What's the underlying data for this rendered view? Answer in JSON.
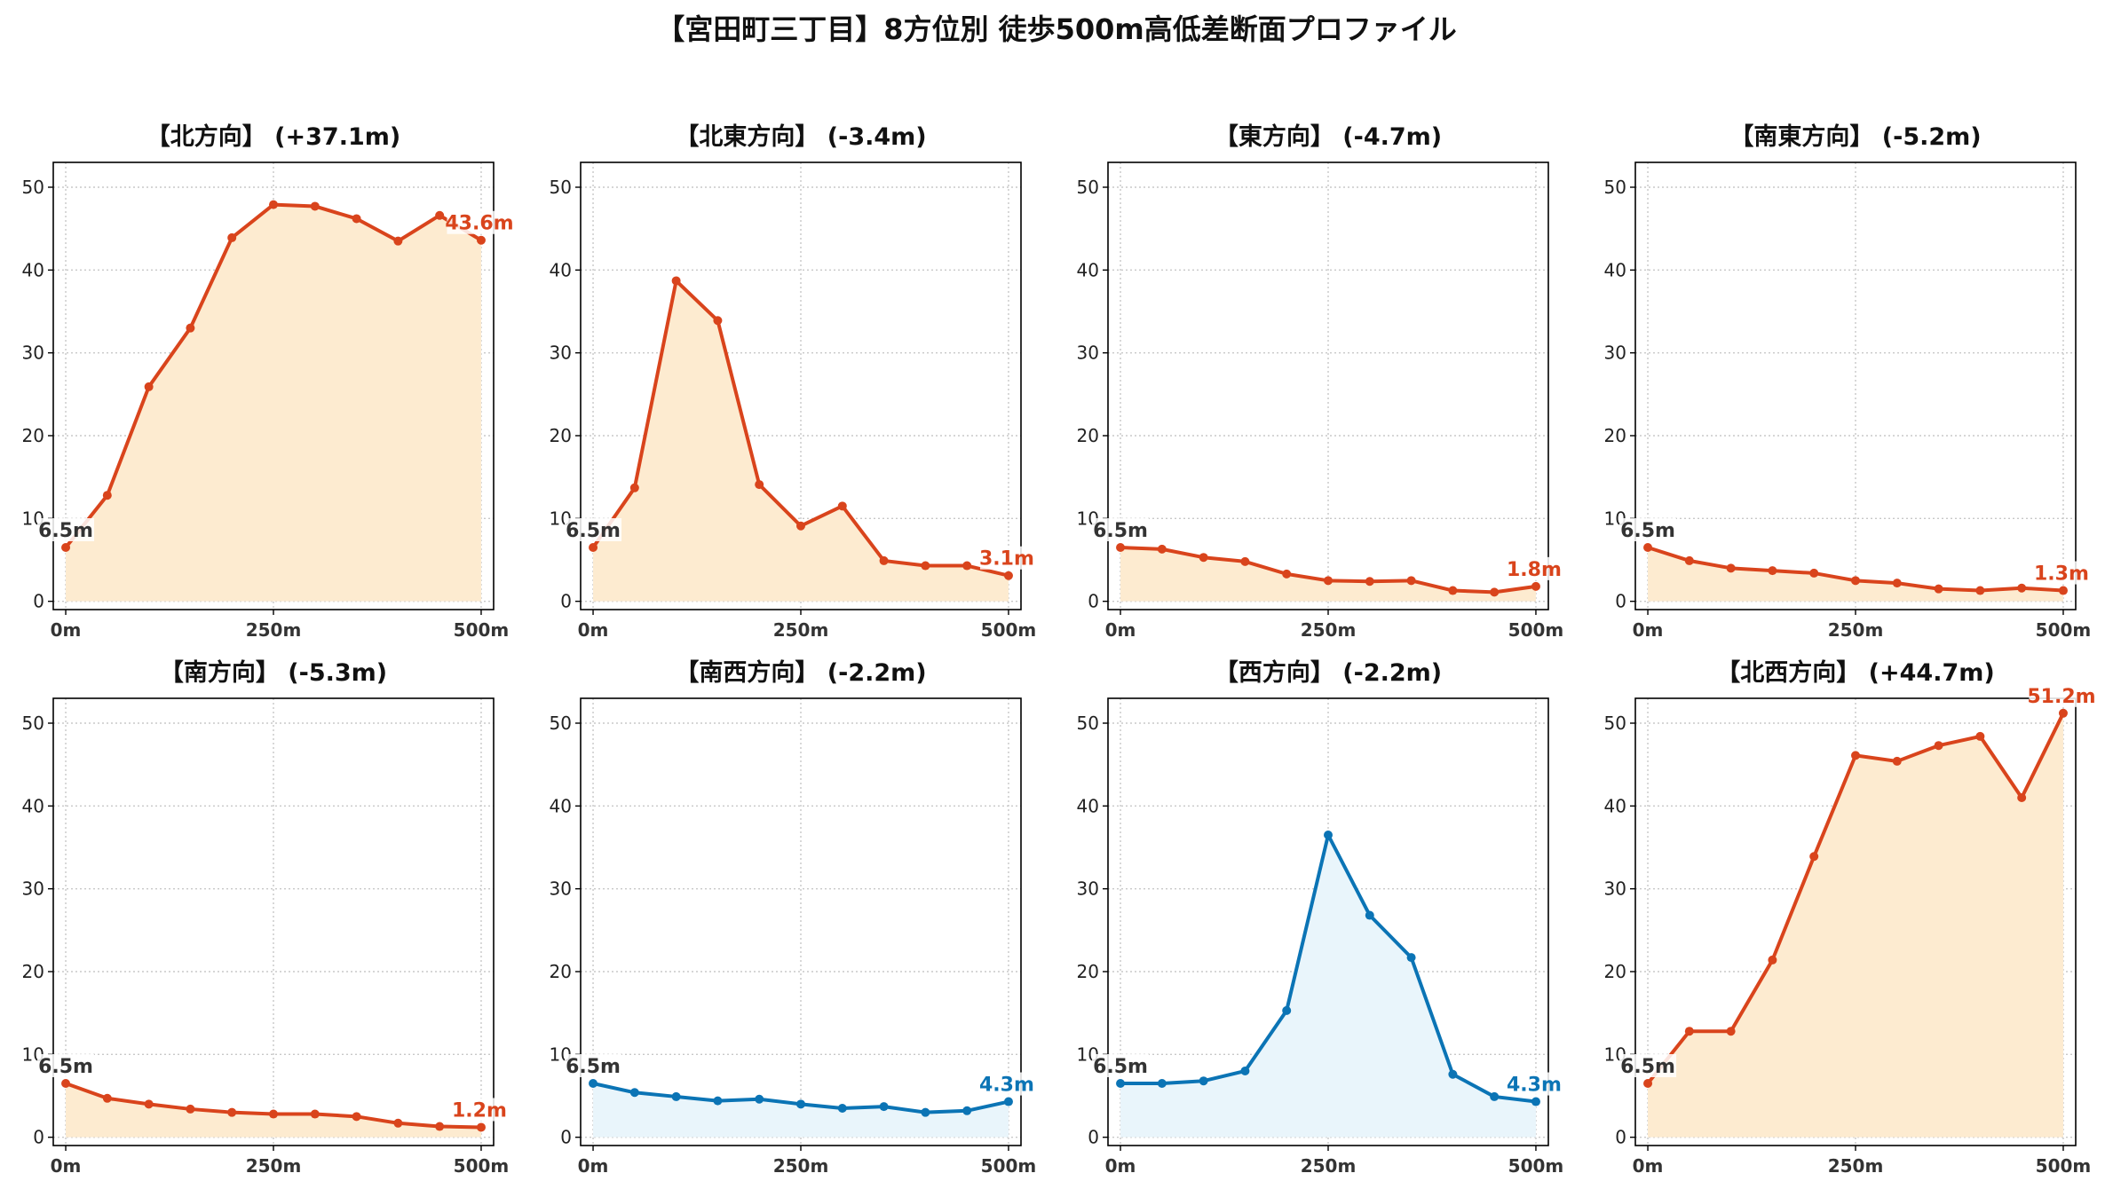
{
  "title": "【宮田町三丁目】8方位別 徒歩500m高低差断面プロファイル",
  "colors": {
    "up_line": "#d9441c",
    "up_fill": "#fdebd0",
    "down_line": "#0b74b5",
    "down_fill": "#e9f5fb",
    "grid": "#c8c8c8",
    "start_label": "#333333"
  },
  "chart_data": [
    {
      "type": "area",
      "title": "【北方向】 (+37.1m)",
      "x": [
        0,
        50,
        100,
        150,
        200,
        250,
        300,
        350,
        400,
        450,
        500
      ],
      "y": [
        6.5,
        12.8,
        25.9,
        33.0,
        43.9,
        47.9,
        47.7,
        46.2,
        43.5,
        46.6,
        43.6
      ],
      "xticks": [
        "0m",
        "250m",
        "500m"
      ],
      "yticks": [
        0,
        10,
        20,
        30,
        40,
        50
      ],
      "xlim": [
        -15,
        515
      ],
      "ylim": [
        -1,
        53
      ],
      "start_label": "6.5m",
      "end_label": "43.6m",
      "color_key": "up",
      "grid": true
    },
    {
      "type": "area",
      "title": "【北東方向】 (-3.4m)",
      "x": [
        0,
        50,
        100,
        150,
        200,
        250,
        300,
        350,
        400,
        450,
        500
      ],
      "y": [
        6.5,
        13.7,
        38.7,
        33.9,
        14.1,
        9.1,
        11.5,
        4.9,
        4.3,
        4.3,
        3.1
      ],
      "xticks": [
        "0m",
        "250m",
        "500m"
      ],
      "yticks": [
        0,
        10,
        20,
        30,
        40,
        50
      ],
      "xlim": [
        -15,
        515
      ],
      "ylim": [
        -1,
        53
      ],
      "start_label": "6.5m",
      "end_label": "3.1m",
      "color_key": "up",
      "grid": true
    },
    {
      "type": "area",
      "title": "【東方向】 (-4.7m)",
      "x": [
        0,
        50,
        100,
        150,
        200,
        250,
        300,
        350,
        400,
        450,
        500
      ],
      "y": [
        6.5,
        6.3,
        5.3,
        4.8,
        3.3,
        2.5,
        2.4,
        2.5,
        1.3,
        1.1,
        1.8
      ],
      "xticks": [
        "0m",
        "250m",
        "500m"
      ],
      "yticks": [
        0,
        10,
        20,
        30,
        40,
        50
      ],
      "xlim": [
        -15,
        515
      ],
      "ylim": [
        -1,
        53
      ],
      "start_label": "6.5m",
      "end_label": "1.8m",
      "color_key": "up",
      "grid": true
    },
    {
      "type": "area",
      "title": "【南東方向】 (-5.2m)",
      "x": [
        0,
        50,
        100,
        150,
        200,
        250,
        300,
        350,
        400,
        450,
        500
      ],
      "y": [
        6.5,
        4.9,
        4.0,
        3.7,
        3.4,
        2.5,
        2.2,
        1.5,
        1.3,
        1.6,
        1.3
      ],
      "xticks": [
        "0m",
        "250m",
        "500m"
      ],
      "yticks": [
        0,
        10,
        20,
        30,
        40,
        50
      ],
      "xlim": [
        -15,
        515
      ],
      "ylim": [
        -1,
        53
      ],
      "start_label": "6.5m",
      "end_label": "1.3m",
      "color_key": "up",
      "grid": true
    },
    {
      "type": "area",
      "title": "【南方向】 (-5.3m)",
      "x": [
        0,
        50,
        100,
        150,
        200,
        250,
        300,
        350,
        400,
        450,
        500
      ],
      "y": [
        6.5,
        4.7,
        4.0,
        3.4,
        3.0,
        2.8,
        2.8,
        2.5,
        1.7,
        1.3,
        1.2
      ],
      "xticks": [
        "0m",
        "250m",
        "500m"
      ],
      "yticks": [
        0,
        10,
        20,
        30,
        40,
        50
      ],
      "xlim": [
        -15,
        515
      ],
      "ylim": [
        -1,
        53
      ],
      "start_label": "6.5m",
      "end_label": "1.2m",
      "color_key": "up",
      "grid": true
    },
    {
      "type": "area",
      "title": "【南西方向】 (-2.2m)",
      "x": [
        0,
        50,
        100,
        150,
        200,
        250,
        300,
        350,
        400,
        450,
        500
      ],
      "y": [
        6.5,
        5.4,
        4.9,
        4.4,
        4.6,
        4.0,
        3.5,
        3.7,
        3.0,
        3.2,
        4.3
      ],
      "xticks": [
        "0m",
        "250m",
        "500m"
      ],
      "yticks": [
        0,
        10,
        20,
        30,
        40,
        50
      ],
      "xlim": [
        -15,
        515
      ],
      "ylim": [
        -1,
        53
      ],
      "start_label": "6.5m",
      "end_label": "4.3m",
      "color_key": "down",
      "grid": true
    },
    {
      "type": "area",
      "title": "【西方向】 (-2.2m)",
      "x": [
        0,
        50,
        100,
        150,
        200,
        250,
        300,
        350,
        400,
        450,
        500
      ],
      "y": [
        6.5,
        6.5,
        6.8,
        8.0,
        15.3,
        36.5,
        26.8,
        21.7,
        7.6,
        4.9,
        4.3
      ],
      "xticks": [
        "0m",
        "250m",
        "500m"
      ],
      "yticks": [
        0,
        10,
        20,
        30,
        40,
        50
      ],
      "xlim": [
        -15,
        515
      ],
      "ylim": [
        -1,
        53
      ],
      "start_label": "6.5m",
      "end_label": "4.3m",
      "color_key": "down",
      "grid": true
    },
    {
      "type": "area",
      "title": "【北西方向】 (+44.7m)",
      "x": [
        0,
        50,
        100,
        150,
        200,
        250,
        300,
        350,
        400,
        450,
        500
      ],
      "y": [
        6.5,
        12.8,
        12.8,
        21.4,
        33.9,
        46.1,
        45.4,
        47.3,
        48.4,
        41.0,
        51.2
      ],
      "xticks": [
        "0m",
        "250m",
        "500m"
      ],
      "yticks": [
        0,
        10,
        20,
        30,
        40,
        50
      ],
      "xlim": [
        -15,
        515
      ],
      "ylim": [
        -1,
        53
      ],
      "start_label": "6.5m",
      "end_label": "51.2m",
      "color_key": "up",
      "grid": true
    }
  ]
}
